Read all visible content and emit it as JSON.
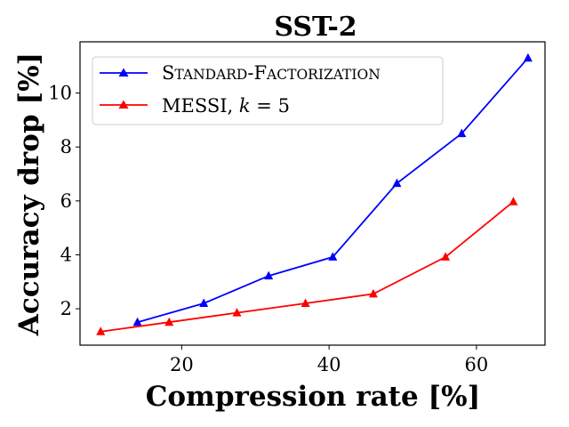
{
  "chart_data": {
    "type": "line",
    "title": "SST-2",
    "xlabel": "Compression rate [%]",
    "ylabel": "Accuracy drop [%]",
    "xlim": [
      6.2,
      69.3
    ],
    "ylim": [
      0.65,
      11.9
    ],
    "xticks": [
      20,
      40,
      60
    ],
    "yticks": [
      2,
      4,
      6,
      8,
      10
    ],
    "legend_position": "top-left",
    "series": [
      {
        "name": "Standard-Factorization",
        "name_main": "S",
        "name_smallcaps": "TANDARD",
        "name_sep": "-",
        "name_main2": "F",
        "name_smallcaps2": "ACTORIZATION",
        "color": "#0000ff",
        "marker": "triangle",
        "x": [
          14.0,
          23.0,
          31.8,
          40.5,
          49.2,
          58.0,
          67.0
        ],
        "y": [
          1.5,
          2.2,
          3.22,
          3.92,
          6.65,
          8.5,
          11.3
        ]
      },
      {
        "name": "MESSI, k = 5",
        "name_main": "MESSI, ",
        "name_var": "k",
        "name_rest": " = 5",
        "color": "#ff0000",
        "marker": "triangle",
        "x": [
          9.0,
          18.3,
          27.5,
          36.8,
          46.0,
          55.8,
          65.0
        ],
        "y": [
          1.15,
          1.5,
          1.85,
          2.2,
          2.55,
          3.92,
          5.97
        ]
      }
    ]
  }
}
